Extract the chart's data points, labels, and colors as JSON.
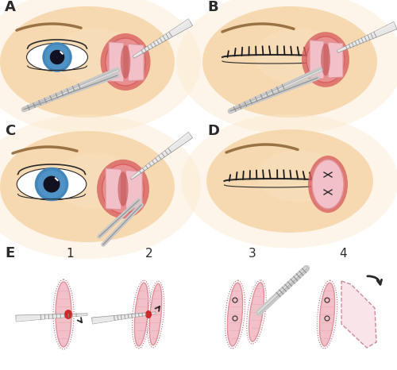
{
  "bg_color": "#ffffff",
  "panel_labels": [
    "A",
    "B",
    "C",
    "D",
    "E"
  ],
  "sub_labels": [
    "1",
    "2",
    "3",
    "4"
  ],
  "label_fontsize": 13,
  "sub_label_fontsize": 11,
  "skin_light": "#fce8c8",
  "skin_color": "#f5d5a8",
  "skin_dark": "#e8b87a",
  "skin_shadow": "#e0c090",
  "pink_light": "#f2c0c8",
  "pink_med": "#e09098",
  "pink_dark": "#c06878",
  "red_tissue": "#d05050",
  "red_accent": "#cc1818",
  "metal_light": "#e8e8e8",
  "metal_dark": "#909090",
  "metal_mid": "#c8c8c8",
  "metal_shine": "#f0f0f0",
  "tissue_outer": "#d86060",
  "tissue_inner": "#e89090",
  "blue_iris": "#4488bb",
  "blue_iris2": "#2255aa",
  "dark_line": "#2a2a2a",
  "brow_color": "#8a6030",
  "lash_color": "#1a1a1a"
}
